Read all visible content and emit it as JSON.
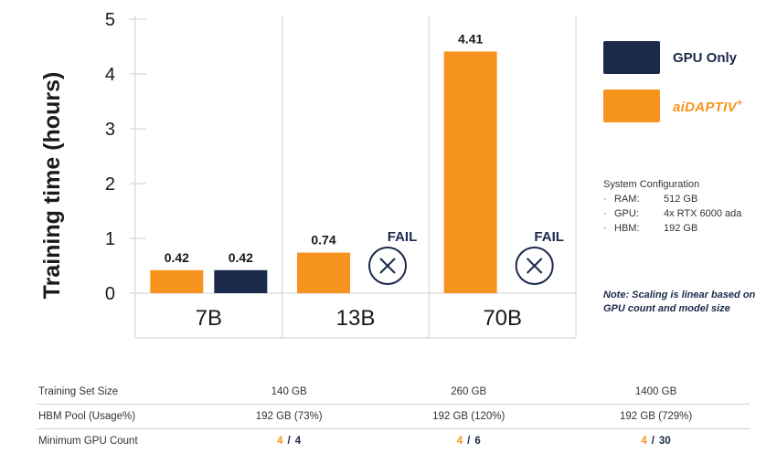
{
  "chart_data": {
    "type": "bar",
    "ylabel": "Training time (hours)",
    "ylim": [
      0,
      5
    ],
    "yticks": [
      "0",
      "1",
      "2",
      "3",
      "4",
      "5"
    ],
    "grid": true,
    "legend_position": "right",
    "categories": [
      "7B",
      "13B",
      "70B"
    ],
    "series": [
      {
        "name": "aiDAPTIV",
        "color": "#f7941d",
        "values": [
          0.42,
          0.74,
          4.41
        ],
        "labels": [
          "0.42",
          "0.74",
          "4.41"
        ]
      },
      {
        "name": "GPU Only",
        "color": "#1b2a4a",
        "values": [
          0.42,
          null,
          null
        ],
        "labels": [
          "0.42",
          "FAIL",
          "FAIL"
        ]
      }
    ]
  },
  "legend": {
    "gpu_only": "GPU Only",
    "aidaptiv": "aiDAPTIV",
    "aidaptiv_mark": "+"
  },
  "system_config": {
    "title": "System Configuration",
    "bullet": "·",
    "rows": [
      {
        "key": "RAM:",
        "value": "512 GB"
      },
      {
        "key": "GPU:",
        "value": "4x RTX 6000 ada"
      },
      {
        "key": "HBM:",
        "value": "192 GB"
      }
    ]
  },
  "note": "Note: Scaling is linear based on GPU count and model size",
  "specs_table": {
    "rows": [
      {
        "label": "Training Set Size",
        "values": [
          "140 GB",
          "260 GB",
          "1400 GB"
        ]
      },
      {
        "label": "HBM Pool (Usage%)",
        "values": [
          "192 GB (73%)",
          "192 GB (120%)",
          "192 GB (729%)"
        ]
      }
    ],
    "gpu_count": {
      "label": "Minimum GPU Count",
      "separator": "/",
      "values": [
        {
          "aidaptiv": "4",
          "gpu_only": "4"
        },
        {
          "aidaptiv": "4",
          "gpu_only": "6"
        },
        {
          "aidaptiv": "4",
          "gpu_only": "30"
        }
      ]
    }
  },
  "colors": {
    "orange": "#f7941d",
    "navy": "#1b2a4a",
    "grid": "#c9cfd9"
  }
}
